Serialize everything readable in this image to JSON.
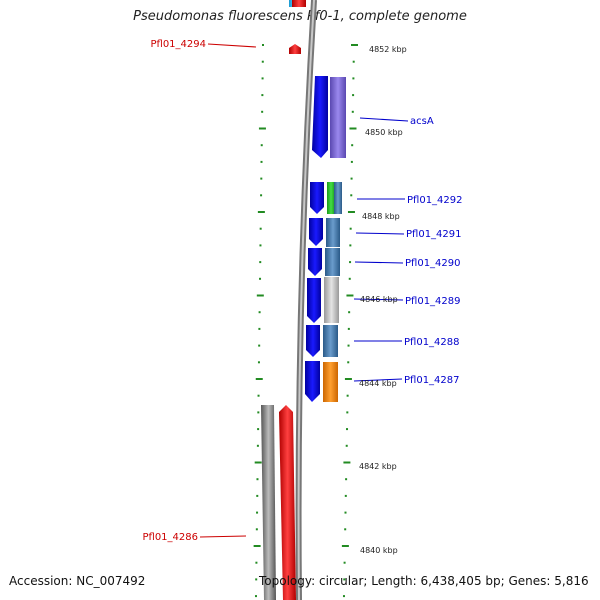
{
  "title": "Pseudomonas fluorescens Pf0-1, complete genome",
  "accession": "Accession: NC_007492",
  "summary": "Topology: circular; Length: 6,438,405 bp; Genes: 5,816",
  "kbp_labels": [
    "4852 kbp",
    "4850 kbp",
    "4848 kbp",
    "4846 kbp",
    "4844 kbp",
    "4842 kbp",
    "4840 kbp"
  ],
  "gene_labels": {
    "reverse": [
      "Pfl01_4294",
      "Pfl01_4286"
    ],
    "forward": [
      "acsA",
      "Pfl01_4292",
      "Pfl01_4291",
      "Pfl01_4290",
      "Pfl01_4289",
      "Pfl01_4288",
      "Pfl01_4287"
    ]
  },
  "colors": {
    "reverse_label": "#cc0000",
    "forward_label": "#0000cc",
    "tick": "#228b22",
    "cds_forward": "#0000ee",
    "cds_reverse": "#ff0000",
    "backbone": "#888888"
  }
}
